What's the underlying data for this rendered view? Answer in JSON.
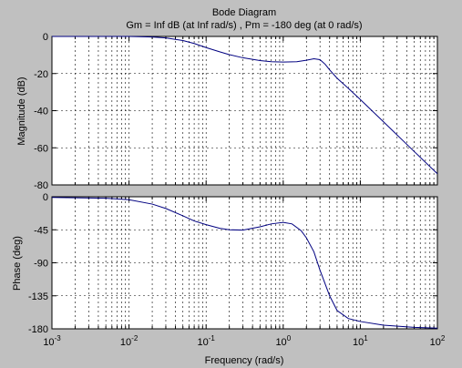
{
  "chart_data": {
    "type": "line",
    "title": "Bode Diagram",
    "subtitle": "Gm = Inf dB (at Inf rad/s) ,  Pm = -180 deg (at 0 rad/s)",
    "xlabel": "Frequency  (rad/s)",
    "xscale": "log",
    "xlim": [
      0.001,
      100
    ],
    "x_ticks": [
      {
        "value": 0.001,
        "base": "10",
        "exp": "-3"
      },
      {
        "value": 0.01,
        "base": "10",
        "exp": "-2"
      },
      {
        "value": 0.1,
        "base": "10",
        "exp": "-1"
      },
      {
        "value": 1,
        "base": "10",
        "exp": "0"
      },
      {
        "value": 10,
        "base": "10",
        "exp": "1"
      },
      {
        "value": 100,
        "base": "10",
        "exp": "2"
      }
    ],
    "grid": true,
    "line_color": "#000080",
    "panels": [
      {
        "name": "magnitude",
        "ylabel": "Magnitude (dB)",
        "ylim": [
          -80,
          0
        ],
        "y_ticks": [
          0,
          -20,
          -40,
          -60,
          -80
        ],
        "x": [
          0.001,
          0.005,
          0.01,
          0.02,
          0.03,
          0.05,
          0.07,
          0.1,
          0.15,
          0.2,
          0.3,
          0.5,
          0.7,
          1,
          1.5,
          2,
          2.5,
          3,
          3.5,
          4,
          5,
          7,
          10,
          20,
          50,
          100
        ],
        "y": [
          0,
          0,
          0,
          -0.3,
          -0.8,
          -2.2,
          -3.8,
          -6,
          -8.3,
          -9.8,
          -11.5,
          -13,
          -13.6,
          -13.8,
          -13.6,
          -12.8,
          -12,
          -12.5,
          -15,
          -18,
          -22.5,
          -28,
          -34,
          -46,
          -62,
          -74
        ]
      },
      {
        "name": "phase",
        "ylabel": "Phase (deg)",
        "ylim": [
          -180,
          0
        ],
        "y_ticks": [
          0,
          -45,
          -90,
          -135,
          -180
        ],
        "x": [
          0.001,
          0.005,
          0.01,
          0.02,
          0.03,
          0.05,
          0.07,
          0.1,
          0.15,
          0.2,
          0.3,
          0.5,
          0.7,
          1,
          1.3,
          1.7,
          2,
          2.5,
          3,
          4,
          5,
          7,
          10,
          20,
          50,
          100
        ],
        "y": [
          -1,
          -2,
          -4,
          -10,
          -16,
          -26,
          -33,
          -38,
          -43,
          -45,
          -45.5,
          -41,
          -37,
          -35,
          -37,
          -46,
          -56,
          -75,
          -100,
          -135,
          -155,
          -166,
          -170,
          -175,
          -178,
          -179
        ]
      }
    ]
  }
}
